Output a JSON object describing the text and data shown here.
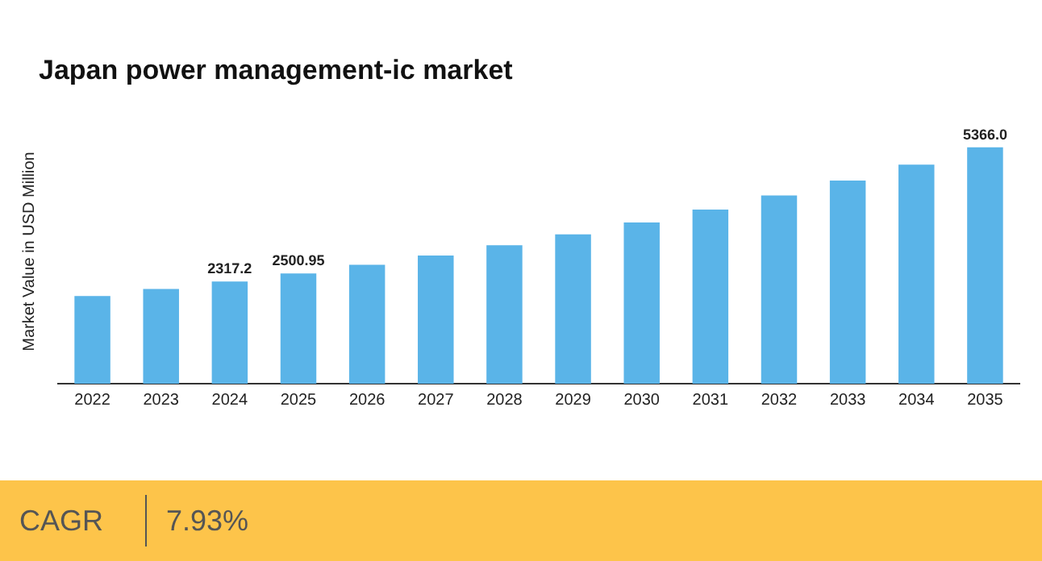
{
  "chart_data": {
    "type": "bar",
    "title": "Japan power management-ic market",
    "ylabel": "Market Value in USD Million",
    "categories": [
      "2022",
      "2023",
      "2024",
      "2025",
      "2026",
      "2027",
      "2028",
      "2029",
      "2030",
      "2031",
      "2032",
      "2033",
      "2034",
      "2035"
    ],
    "values": [
      1990,
      2150,
      2317.2,
      2500.95,
      2700,
      2910,
      3140,
      3390,
      3660,
      3950,
      4270,
      4610,
      4970,
      5366.0
    ],
    "value_labels": [
      null,
      null,
      "2317.2",
      "2500.95",
      null,
      null,
      null,
      null,
      null,
      null,
      null,
      null,
      null,
      "5366.0"
    ],
    "color": "#5ab4e8",
    "grid": false,
    "legend": false,
    "annotations": [
      "CAGR",
      "7.93%"
    ]
  }
}
